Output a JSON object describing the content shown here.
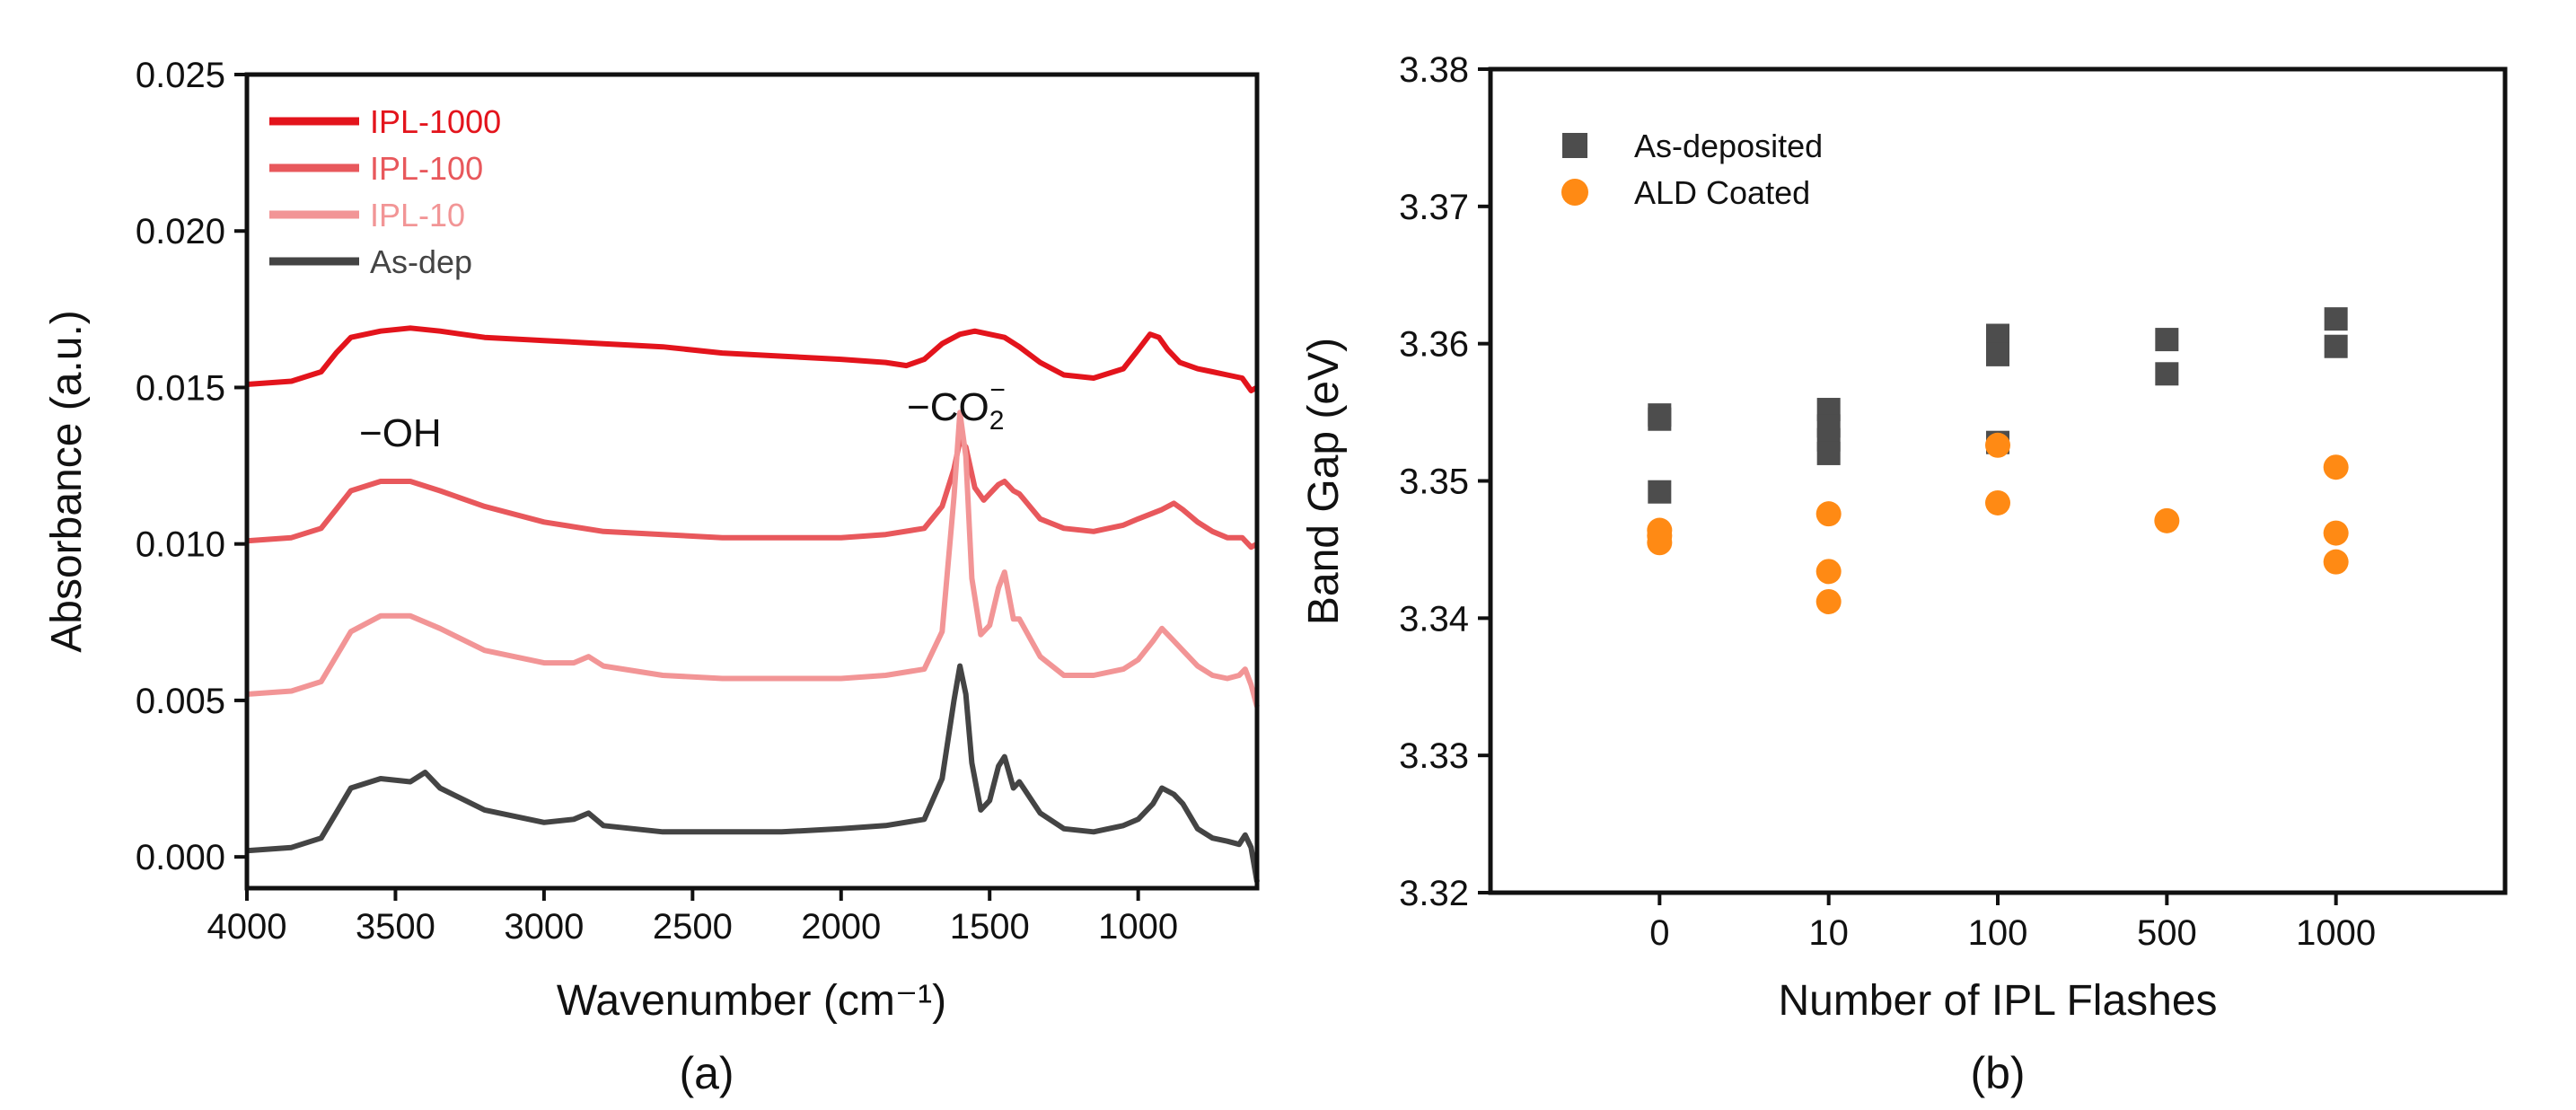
{
  "chart_data": [
    {
      "panel": "(a)",
      "type": "line",
      "xlabel": "Wavenumber (cm⁻¹)",
      "ylabel": "Absorbance (a.u.)",
      "xlim": [
        4000,
        600
      ],
      "ylim": [
        -0.001,
        0.025
      ],
      "x_ticks": [
        4000,
        3500,
        3000,
        2500,
        2000,
        1500,
        1000
      ],
      "x_tick_labels": [
        "4000",
        "3500",
        "3000",
        "2500",
        "2000",
        "1500",
        "1000"
      ],
      "y_ticks": [
        0.0,
        0.005,
        0.01,
        0.015,
        0.02,
        0.025
      ],
      "y_tick_labels": [
        "0.000",
        "0.005",
        "0.010",
        "0.015",
        "0.020",
        "0.025"
      ],
      "legend_position": "top-left",
      "annotations": [
        {
          "text": "−OH",
          "x": 3450,
          "y": 0.0133
        },
        {
          "text": "−CO",
          "sub": "2",
          "sup": "−",
          "x": 1620,
          "y": 0.0134
        }
      ],
      "series": [
        {
          "name": "IPL-1000",
          "color": "#e3141c",
          "x": [
            4000,
            3850,
            3750,
            3700,
            3650,
            3550,
            3450,
            3350,
            3200,
            3000,
            2800,
            2600,
            2400,
            2200,
            2000,
            1850,
            1780,
            1720,
            1660,
            1600,
            1550,
            1500,
            1450,
            1400,
            1330,
            1250,
            1150,
            1050,
            1000,
            960,
            930,
            900,
            860,
            800,
            750,
            700,
            650,
            620,
            600
          ],
          "y": [
            0.0151,
            0.0152,
            0.0155,
            0.0161,
            0.0166,
            0.0168,
            0.0169,
            0.0168,
            0.0166,
            0.0165,
            0.0164,
            0.0163,
            0.0161,
            0.016,
            0.0159,
            0.0158,
            0.0157,
            0.0159,
            0.0164,
            0.0167,
            0.0168,
            0.0167,
            0.0166,
            0.0163,
            0.0158,
            0.0154,
            0.0153,
            0.0156,
            0.0162,
            0.0167,
            0.0166,
            0.0162,
            0.0158,
            0.0156,
            0.0155,
            0.0154,
            0.0153,
            0.0149,
            0.015
          ]
        },
        {
          "name": "IPL-100",
          "color": "#e8585c",
          "x": [
            4000,
            3850,
            3750,
            3700,
            3650,
            3550,
            3450,
            3350,
            3200,
            3000,
            2800,
            2600,
            2400,
            2200,
            2000,
            1850,
            1720,
            1660,
            1620,
            1600,
            1580,
            1550,
            1520,
            1500,
            1470,
            1450,
            1420,
            1400,
            1330,
            1250,
            1150,
            1050,
            1000,
            920,
            880,
            850,
            800,
            750,
            700,
            650,
            620,
            600
          ],
          "y": [
            0.0101,
            0.0102,
            0.0105,
            0.0111,
            0.0117,
            0.012,
            0.012,
            0.0117,
            0.0112,
            0.0107,
            0.0104,
            0.0103,
            0.0102,
            0.0102,
            0.0102,
            0.0103,
            0.0105,
            0.0112,
            0.0124,
            0.0133,
            0.0131,
            0.0118,
            0.0114,
            0.0116,
            0.0119,
            0.012,
            0.0117,
            0.0116,
            0.0108,
            0.0105,
            0.0104,
            0.0106,
            0.0108,
            0.0111,
            0.0113,
            0.0111,
            0.0107,
            0.0104,
            0.0102,
            0.0102,
            0.0099,
            0.01
          ]
        },
        {
          "name": "IPL-10",
          "color": "#f29596",
          "x": [
            4000,
            3850,
            3750,
            3700,
            3650,
            3550,
            3450,
            3350,
            3200,
            3000,
            2900,
            2850,
            2800,
            2600,
            2400,
            2200,
            2000,
            1850,
            1720,
            1660,
            1620,
            1600,
            1580,
            1560,
            1530,
            1500,
            1470,
            1450,
            1420,
            1400,
            1330,
            1250,
            1150,
            1050,
            1000,
            950,
            920,
            880,
            850,
            800,
            750,
            700,
            660,
            640,
            620,
            600
          ],
          "y": [
            0.0052,
            0.0053,
            0.0056,
            0.0064,
            0.0072,
            0.0077,
            0.0077,
            0.0073,
            0.0066,
            0.0062,
            0.0062,
            0.0064,
            0.0061,
            0.0058,
            0.0057,
            0.0057,
            0.0057,
            0.0058,
            0.006,
            0.0072,
            0.0115,
            0.0142,
            0.0128,
            0.0089,
            0.0071,
            0.0074,
            0.0086,
            0.0091,
            0.0076,
            0.0076,
            0.0064,
            0.0058,
            0.0058,
            0.006,
            0.0063,
            0.0069,
            0.0073,
            0.0069,
            0.0066,
            0.0061,
            0.0058,
            0.0057,
            0.0058,
            0.006,
            0.0055,
            0.0048
          ]
        },
        {
          "name": "As-dep",
          "color": "#444444",
          "x": [
            4000,
            3850,
            3750,
            3700,
            3650,
            3550,
            3450,
            3400,
            3350,
            3200,
            3000,
            2900,
            2850,
            2800,
            2600,
            2400,
            2200,
            2000,
            1850,
            1720,
            1660,
            1620,
            1600,
            1580,
            1560,
            1530,
            1500,
            1470,
            1450,
            1420,
            1400,
            1330,
            1250,
            1150,
            1050,
            1000,
            950,
            920,
            880,
            850,
            800,
            750,
            700,
            660,
            640,
            620,
            600
          ],
          "y": [
            0.0002,
            0.0003,
            0.0006,
            0.0014,
            0.0022,
            0.0025,
            0.0024,
            0.0027,
            0.0022,
            0.0015,
            0.0011,
            0.0012,
            0.0014,
            0.001,
            0.0008,
            0.0008,
            0.0008,
            0.0009,
            0.001,
            0.0012,
            0.0025,
            0.005,
            0.0061,
            0.0052,
            0.003,
            0.0015,
            0.0018,
            0.0029,
            0.0032,
            0.0022,
            0.0024,
            0.0014,
            0.0009,
            0.0008,
            0.001,
            0.0012,
            0.0017,
            0.0022,
            0.002,
            0.0017,
            0.0009,
            0.0006,
            0.0005,
            0.0004,
            0.0007,
            0.0003,
            -0.0008
          ]
        }
      ]
    },
    {
      "panel": "(b)",
      "type": "scatter",
      "xlabel": "Number of IPL Flashes",
      "ylabel": "Band Gap (eV)",
      "categories": [
        "0",
        "10",
        "100",
        "500",
        "1000"
      ],
      "ylim": [
        3.32,
        3.38
      ],
      "y_ticks": [
        3.32,
        3.33,
        3.34,
        3.35,
        3.36,
        3.37,
        3.38
      ],
      "y_tick_labels": [
        "3.32",
        "3.33",
        "3.34",
        "3.35",
        "3.36",
        "3.37",
        "3.38"
      ],
      "legend_position": "top-left",
      "series": [
        {
          "name": "As-deposited",
          "marker": "square",
          "color": "#4d4d4d",
          "points": [
            {
              "x": "0",
              "y": 3.3548
            },
            {
              "x": "0",
              "y": 3.3545
            },
            {
              "x": "0",
              "y": 3.3492
            },
            {
              "x": "10",
              "y": 3.3552
            },
            {
              "x": "10",
              "y": 3.354
            },
            {
              "x": "10",
              "y": 3.353
            },
            {
              "x": "10",
              "y": 3.352
            },
            {
              "x": "100",
              "y": 3.3606
            },
            {
              "x": "100",
              "y": 3.3592
            },
            {
              "x": "100",
              "y": 3.3528
            },
            {
              "x": "500",
              "y": 3.3603
            },
            {
              "x": "500",
              "y": 3.3578
            },
            {
              "x": "1000",
              "y": 3.3618
            },
            {
              "x": "1000",
              "y": 3.3598
            }
          ]
        },
        {
          "name": "ALD Coated",
          "marker": "circle",
          "color": "#ff8a14",
          "points": [
            {
              "x": "0",
              "y": 3.3464
            },
            {
              "x": "0",
              "y": 3.346
            },
            {
              "x": "0",
              "y": 3.3455
            },
            {
              "x": "10",
              "y": 3.3476
            },
            {
              "x": "10",
              "y": 3.3434
            },
            {
              "x": "10",
              "y": 3.3412
            },
            {
              "x": "100",
              "y": 3.3526
            },
            {
              "x": "100",
              "y": 3.3484
            },
            {
              "x": "500",
              "y": 3.3471
            },
            {
              "x": "1000",
              "y": 3.351
            },
            {
              "x": "1000",
              "y": 3.3462
            },
            {
              "x": "1000",
              "y": 3.3441
            }
          ]
        }
      ]
    }
  ]
}
